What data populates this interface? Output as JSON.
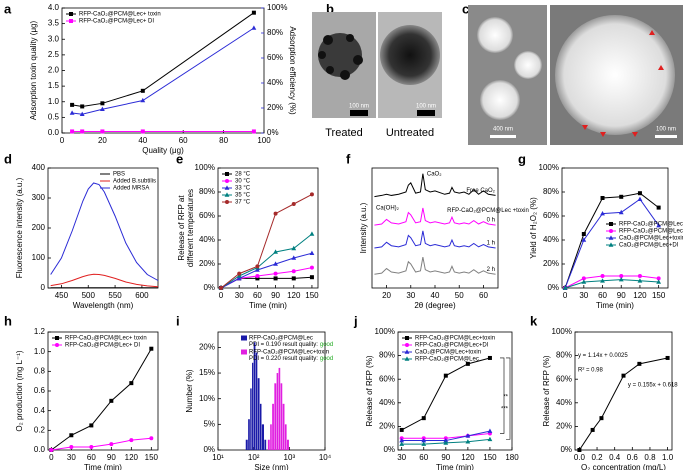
{
  "chart_data": [
    {
      "type": "line",
      "label": "a",
      "xlabel": "Quality (μg)",
      "ylabel": "Adsorption toxin quality (μg)",
      "y2label": "Adsorption efficiency (%)",
      "x": [
        5,
        10,
        20,
        40,
        95
      ],
      "xlim": [
        0,
        100
      ],
      "xticks": [
        0,
        20,
        40,
        60,
        80,
        100
      ],
      "ylim": [
        0,
        4
      ],
      "yticks": [
        {
          "value": 0,
          "label": "0.0"
        },
        0.5,
        {
          "value": 1,
          "label": "1.0"
        },
        1.5,
        {
          "value": 2,
          "label": "2.0"
        },
        2.5,
        {
          "value": 3,
          "label": "3.0"
        },
        3.5,
        {
          "value": 4,
          "label": "4.0"
        }
      ],
      "y2lim": [
        0,
        100
      ],
      "y2ticks": [
        {
          "value": 0,
          "label": "0%"
        },
        {
          "value": 20,
          "label": "20%"
        },
        {
          "value": 40,
          "label": "40%"
        },
        {
          "value": 60,
          "label": "60%"
        },
        {
          "value": 80,
          "label": "80%"
        },
        {
          "value": 100,
          "label": "100%"
        }
      ],
      "legend": "upper left",
      "series": [
        {
          "name": "RFP-CaO₂@PCM@Lec+ toxin",
          "color": "#000000",
          "marker": "square",
          "values": [
            0.9,
            0.85,
            0.95,
            1.35,
            3.85
          ]
        },
        {
          "name": "RFP-CaO₂@PCM@Lec+ DI",
          "color": "#ff00ff",
          "marker": "square",
          "values": [
            0.05,
            0.05,
            0.05,
            0.05,
            0.05
          ]
        },
        {
          "name": "Adsorption efficiency",
          "legend": false,
          "axis": "y2",
          "color": "#2b2bd6",
          "marker": "triangle",
          "values": [
            16,
            15,
            19,
            26,
            84
          ]
        }
      ]
    },
    {
      "type": "line",
      "label": "d",
      "xlabel": "Wavelength (nm)",
      "ylabel": "Fluorescence intensity (a.u.)",
      "x": [
        430,
        450,
        470,
        490,
        500,
        510,
        520,
        530,
        550,
        570,
        590,
        610,
        630
      ],
      "xlim": [
        425,
        630
      ],
      "xticks": [
        450,
        500,
        550,
        600
      ],
      "ylim": [
        0,
        400
      ],
      "yticks": [
        0,
        100,
        200,
        300,
        400
      ],
      "legend": "upper right",
      "series": [
        {
          "name": "PBS",
          "color": "#000000",
          "values": [
            1,
            1,
            1,
            1,
            1,
            1,
            1,
            1,
            1,
            1,
            1,
            1,
            1
          ]
        },
        {
          "name": "Added B.subtilis",
          "color": "#e02020",
          "values": [
            8,
            14,
            25,
            38,
            43,
            46,
            45,
            42,
            32,
            20,
            12,
            7,
            4
          ]
        },
        {
          "name": "Added MRSA",
          "color": "#2b2bd6",
          "values": [
            45,
            100,
            190,
            290,
            330,
            350,
            345,
            320,
            240,
            150,
            85,
            45,
            25
          ]
        }
      ]
    },
    {
      "type": "line",
      "label": "e",
      "xlabel": "Time (min)",
      "ylabel": [
        "Release of RFP at",
        "different temperatures"
      ],
      "x": [
        0,
        30,
        60,
        90,
        120,
        150
      ],
      "xlim": [
        -5,
        160
      ],
      "xticks": [
        0,
        30,
        60,
        90,
        120,
        150
      ],
      "ylim": [
        0,
        100
      ],
      "yticks": [
        {
          "value": 0,
          "label": "0%"
        },
        {
          "value": 20,
          "label": "20%"
        },
        {
          "value": 40,
          "label": "40%"
        },
        {
          "value": 60,
          "label": "60%"
        },
        {
          "value": 80,
          "label": "80%"
        },
        {
          "value": 100,
          "label": "100%"
        }
      ],
      "legend": "upper left",
      "series": [
        {
          "name": "28 °C",
          "color": "#000000",
          "marker": "square",
          "values": [
            0,
            8,
            8,
            8,
            8,
            9
          ]
        },
        {
          "name": "30 °C",
          "color": "#ff00ff",
          "marker": "circle",
          "values": [
            0,
            8,
            10,
            12,
            14,
            17
          ]
        },
        {
          "name": "33 °C",
          "color": "#2b2bd6",
          "marker": "triangle",
          "values": [
            0,
            8,
            15,
            20,
            25,
            29
          ]
        },
        {
          "name": "35 °C",
          "color": "#008080",
          "marker": "triangle",
          "values": [
            0,
            10,
            17,
            30,
            33,
            45
          ]
        },
        {
          "name": "37 °C",
          "color": "#a52a2a",
          "marker": "circle",
          "values": [
            0,
            12,
            18,
            62,
            70,
            78
          ]
        }
      ]
    },
    {
      "type": "line",
      "label": "f",
      "xlabel": "2θ (degree)",
      "ylabel": "Intensity (a.u.)",
      "x": [
        15,
        18,
        20,
        22,
        25,
        28,
        29,
        30,
        32,
        34,
        35,
        36,
        38,
        40,
        44,
        46,
        47,
        48,
        50,
        52,
        54,
        56,
        58,
        60,
        62,
        65
      ],
      "xlim": [
        14,
        66
      ],
      "xticks": [
        20,
        30,
        40,
        50,
        60
      ],
      "ylim": [
        0,
        105
      ],
      "legend": "inline",
      "annotations": [
        "CaO₂",
        "Ca(OH)₂",
        "RFP-CaO₂@PCM@Lec +toxin"
      ],
      "series": [
        {
          "name": "Free CaO₂",
          "color": "#000000",
          "values": [
            80,
            81,
            82,
            81,
            82,
            84,
            90,
            92,
            83,
            84,
            100,
            86,
            84,
            85,
            82,
            83,
            88,
            84,
            83,
            84,
            82,
            86,
            82,
            85,
            82,
            81
          ]
        },
        {
          "name": "0 h",
          "color": "#ff00ff",
          "values": [
            55,
            56,
            60,
            57,
            56,
            58,
            66,
            64,
            57,
            58,
            70,
            59,
            57,
            58,
            56,
            57,
            62,
            57,
            56,
            57,
            56,
            59,
            56,
            58,
            56,
            55
          ]
        },
        {
          "name": "1 h",
          "color": "#2b2bd6",
          "values": [
            35,
            36,
            40,
            37,
            36,
            38,
            46,
            44,
            37,
            38,
            50,
            39,
            37,
            38,
            36,
            37,
            42,
            37,
            36,
            37,
            36,
            39,
            36,
            38,
            36,
            35
          ]
        },
        {
          "name": "2 h",
          "color": "#808080",
          "values": [
            12,
            13,
            17,
            14,
            13,
            15,
            23,
            21,
            14,
            15,
            27,
            16,
            14,
            15,
            13,
            14,
            19,
            14,
            13,
            14,
            13,
            16,
            13,
            15,
            13,
            12
          ]
        }
      ]
    },
    {
      "type": "line",
      "label": "g",
      "xlabel": "Time (min)",
      "ylabel": "Yield of H₂O₂ (%)",
      "x": [
        0,
        30,
        60,
        90,
        120,
        150
      ],
      "xlim": [
        -5,
        165
      ],
      "xticks": [
        0,
        30,
        60,
        90,
        120,
        150
      ],
      "ylim": [
        0,
        100
      ],
      "yticks": [
        {
          "value": 0,
          "label": "0%"
        },
        {
          "value": 20,
          "label": "20%"
        },
        {
          "value": 40,
          "label": "40%"
        },
        {
          "value": 60,
          "label": "60%"
        },
        {
          "value": 80,
          "label": "80%"
        },
        {
          "value": 100,
          "label": "100%"
        }
      ],
      "legend": "center right",
      "series": [
        {
          "name": "RFP-CaO₂@PCM@Lec+toxin",
          "color": "#000000",
          "marker": "square",
          "values": [
            0,
            45,
            75,
            76,
            79,
            67
          ]
        },
        {
          "name": "RFP-CaO₂@PCM@Lec+DI",
          "color": "#ff00ff",
          "marker": "circle",
          "values": [
            0,
            8,
            10,
            10,
            10,
            8
          ]
        },
        {
          "name": "CaO₂@PCM@Lec+toxin",
          "color": "#2b2bd6",
          "marker": "triangle",
          "values": [
            0,
            40,
            62,
            63,
            74,
            52
          ]
        },
        {
          "name": "CaO₂@PCM@Lec+DI",
          "color": "#008080",
          "marker": "triangle",
          "values": [
            0,
            5,
            6,
            7,
            6,
            5
          ]
        }
      ]
    },
    {
      "type": "line",
      "label": "h",
      "xlabel": "Time (min)",
      "ylabel": "O₂ production (mg L⁻¹)",
      "x": [
        0,
        30,
        60,
        90,
        120,
        150
      ],
      "xlim": [
        -5,
        160
      ],
      "xticks": [
        0,
        30,
        60,
        90,
        120,
        150
      ],
      "ylim": [
        0,
        1.2
      ],
      "yticks": [
        {
          "value": 0,
          "label": "0.0"
        },
        0.2,
        0.4,
        0.6,
        0.8,
        {
          "value": 1,
          "label": "1.0"
        },
        1.2
      ],
      "legend": "upper left",
      "series": [
        {
          "name": "RFP-CaO₂@PCM@Lec+ toxin",
          "color": "#000000",
          "marker": "square",
          "values": [
            0,
            0.15,
            0.25,
            0.5,
            0.68,
            1.03
          ]
        },
        {
          "name": "RFP-CaO₂@PCM@Lec+ DI",
          "color": "#ff00ff",
          "marker": "circle",
          "values": [
            0,
            0.03,
            0.03,
            0.06,
            0.1,
            0.12
          ]
        }
      ]
    },
    {
      "type": "histogram",
      "label": "i",
      "xlabel": "Size (nm)",
      "ylabel": "Number (%)",
      "xlog": true,
      "xlim": [
        10,
        10000
      ],
      "xticks": [
        {
          "value": 10,
          "label": "10¹"
        },
        {
          "value": 100,
          "label": "10²"
        },
        {
          "value": 1000,
          "label": "10³"
        },
        {
          "value": 10000,
          "label": "10⁴"
        }
      ],
      "ylim": [
        0,
        23
      ],
      "yticks": [
        {
          "value": 0,
          "label": "0%"
        },
        {
          "value": 5,
          "label": "5%"
        },
        {
          "value": 10,
          "label": "10%"
        },
        {
          "value": 15,
          "label": "15%"
        },
        {
          "value": 20,
          "label": "20%"
        }
      ],
      "legend": "upper right",
      "series": [
        {
          "name": "RFP-CaO₂@PCM@Lec",
          "note": "PDI = 0.190 result quality:",
          "quality": "good",
          "color": "#1a1aa8",
          "bins": [
            60,
            70,
            80,
            90,
            100,
            115,
            130,
            150,
            170,
            200,
            230
          ],
          "values": [
            2,
            6,
            12,
            17,
            21,
            19,
            14,
            9,
            5,
            2
          ]
        },
        {
          "name": "RFP-CaO₂@PCM@Lec+toxin",
          "note": "PDI = 0.220 result quality:",
          "quality": "good",
          "color": "#e020e0",
          "bins": [
            250,
            290,
            330,
            380,
            440,
            500,
            570,
            650,
            750,
            860,
            1000
          ],
          "values": [
            2,
            5,
            9,
            13,
            15,
            16,
            13,
            9,
            5,
            2
          ]
        }
      ]
    },
    {
      "type": "line",
      "label": "j",
      "xlabel": "Time (min)",
      "ylabel": "Release of RFP (%)",
      "x": [
        30,
        60,
        90,
        120,
        150
      ],
      "xlim": [
        25,
        180
      ],
      "xticks": [
        30,
        60,
        90,
        120,
        150,
        180
      ],
      "ylim": [
        0,
        100
      ],
      "yticks": [
        {
          "value": 0,
          "label": "0%"
        },
        {
          "value": 20,
          "label": "20%"
        },
        {
          "value": 40,
          "label": "40%"
        },
        {
          "value": 60,
          "label": "60%"
        },
        {
          "value": 80,
          "label": "80%"
        },
        {
          "value": 100,
          "label": "100%"
        }
      ],
      "legend": "upper left",
      "annotations": [
        "**",
        "***"
      ],
      "series": [
        {
          "name": "RFP-CaO₂@PCM@Lec+toxin",
          "color": "#000000",
          "marker": "square",
          "values": [
            17,
            27,
            63,
            73,
            78
          ]
        },
        {
          "name": "RFP-CaO₂@PCM@Lec+DI",
          "color": "#ff00ff",
          "marker": "circle",
          "values": [
            10,
            10,
            10,
            12,
            14
          ]
        },
        {
          "name": "CaO₂@PCM@Lec+toxin",
          "color": "#2b2bd6",
          "marker": "triangle",
          "values": [
            8,
            8,
            8,
            12,
            16
          ]
        },
        {
          "name": "RFP-CaO₂@PCM@Lec",
          "color": "#008080",
          "marker": "triangle",
          "values": [
            5,
            5,
            6,
            7,
            9
          ]
        }
      ]
    },
    {
      "type": "line",
      "label": "k",
      "xlabel": "O₂ concentration (mg/L)",
      "ylabel": "Release of RFP (%)",
      "x": [
        0,
        0.15,
        0.25,
        0.5,
        0.68,
        1.0
      ],
      "xlim": [
        -0.05,
        1.05
      ],
      "xticks": [
        {
          "value": 0,
          "label": "0.0"
        },
        0.2,
        0.4,
        0.6,
        0.8,
        {
          "value": 1,
          "label": "1.0"
        }
      ],
      "ylim": [
        0,
        100
      ],
      "yticks": [
        {
          "value": 0,
          "label": "0%"
        },
        {
          "value": 20,
          "label": "20%"
        },
        {
          "value": 40,
          "label": "40%"
        },
        {
          "value": 60,
          "label": "60%"
        },
        {
          "value": 80,
          "label": "80%"
        },
        {
          "value": 100,
          "label": "100%"
        }
      ],
      "annotations": [
        "y = 1.14x + 0.0025",
        "R² = 0.98",
        "y = 0.155x + 0.618"
      ],
      "series": [
        {
          "name": "Release",
          "legend": false,
          "color": "#000000",
          "marker": "square",
          "values": [
            0,
            17,
            27,
            63,
            73,
            78
          ]
        }
      ]
    }
  ],
  "images": [
    {
      "label": "b",
      "captions": [
        "Treated",
        "Untreated"
      ],
      "scale_bars": [
        "100 nm",
        "100 nm"
      ]
    },
    {
      "label": "c",
      "scale_bars": [
        "400 nm",
        "100 nm"
      ]
    }
  ]
}
